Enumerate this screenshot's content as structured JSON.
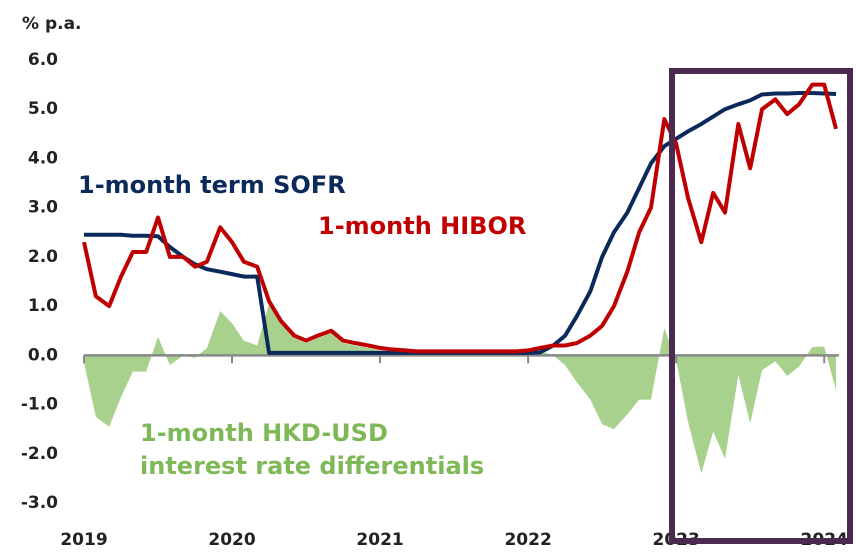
{
  "chart_data": {
    "type": "line",
    "y_label": "% p.a.",
    "x": [
      2019.0,
      2019.08,
      2019.17,
      2019.25,
      2019.33,
      2019.42,
      2019.5,
      2019.58,
      2019.67,
      2019.75,
      2019.83,
      2019.92,
      2020.0,
      2020.08,
      2020.17,
      2020.25,
      2020.33,
      2020.42,
      2020.5,
      2020.58,
      2020.67,
      2020.75,
      2020.83,
      2020.92,
      2021.0,
      2021.08,
      2021.17,
      2021.25,
      2021.33,
      2021.42,
      2021.5,
      2021.58,
      2021.67,
      2021.75,
      2021.83,
      2021.92,
      2022.0,
      2022.08,
      2022.17,
      2022.25,
      2022.33,
      2022.42,
      2022.5,
      2022.58,
      2022.67,
      2022.75,
      2022.83,
      2022.92,
      2023.0,
      2023.08,
      2023.17,
      2023.25,
      2023.33,
      2023.42,
      2023.5,
      2023.58,
      2023.67,
      2023.75,
      2023.83,
      2023.92,
      2024.0,
      2024.08
    ],
    "series": [
      {
        "name": "1-month term SOFR",
        "color": "#0b2a5c",
        "type": "line",
        "values": [
          2.45,
          2.45,
          2.45,
          2.45,
          2.43,
          2.43,
          2.42,
          2.2,
          2.0,
          1.85,
          1.75,
          1.7,
          1.65,
          1.6,
          1.6,
          0.05,
          0.05,
          0.05,
          0.05,
          0.05,
          0.05,
          0.05,
          0.05,
          0.05,
          0.05,
          0.05,
          0.05,
          0.05,
          0.05,
          0.05,
          0.05,
          0.05,
          0.05,
          0.05,
          0.05,
          0.05,
          0.05,
          0.06,
          0.2,
          0.4,
          0.8,
          1.3,
          2.0,
          2.5,
          2.9,
          3.4,
          3.9,
          4.25,
          4.4,
          4.55,
          4.7,
          4.85,
          5.0,
          5.1,
          5.18,
          5.3,
          5.32,
          5.32,
          5.33,
          5.33,
          5.32,
          5.31
        ]
      },
      {
        "name": "1-month HIBOR",
        "color": "#c00000",
        "type": "line",
        "values": [
          2.3,
          1.2,
          1.0,
          1.6,
          2.1,
          2.1,
          2.8,
          2.0,
          2.0,
          1.8,
          1.9,
          2.6,
          2.3,
          1.9,
          1.8,
          1.1,
          0.7,
          0.4,
          0.3,
          0.4,
          0.5,
          0.3,
          0.25,
          0.2,
          0.15,
          0.12,
          0.1,
          0.08,
          0.08,
          0.08,
          0.08,
          0.08,
          0.08,
          0.08,
          0.08,
          0.08,
          0.1,
          0.15,
          0.2,
          0.2,
          0.25,
          0.4,
          0.6,
          1.0,
          1.7,
          2.5,
          3.0,
          4.8,
          4.3,
          3.2,
          2.3,
          3.3,
          2.9,
          4.7,
          3.8,
          5.0,
          5.2,
          4.9,
          5.1,
          5.5,
          5.5,
          4.6
        ]
      },
      {
        "name": "1-month HKD-USD interest rate differentials",
        "color": "#a9d18e",
        "type": "area",
        "values": [
          -0.15,
          -1.25,
          -1.45,
          -0.85,
          -0.33,
          -0.33,
          0.38,
          -0.2,
          0,
          -0.05,
          0.15,
          0.9,
          0.65,
          0.3,
          0.2,
          1.05,
          0.65,
          0.35,
          0.25,
          0.35,
          0.45,
          0.25,
          0.2,
          0.15,
          0.1,
          0.07,
          0.05,
          0.03,
          0.03,
          0.03,
          0.03,
          0.03,
          0.03,
          0.03,
          0.03,
          0.03,
          0.05,
          0.09,
          0,
          -0.2,
          -0.55,
          -0.9,
          -1.4,
          -1.5,
          -1.2,
          -0.9,
          -0.9,
          0.55,
          -0.1,
          -1.35,
          -2.4,
          -1.55,
          -2.1,
          -0.4,
          -1.38,
          -0.3,
          -0.12,
          -0.42,
          -0.23,
          0.17,
          0.18,
          -0.71
        ]
      }
    ],
    "xlim": [
      2019,
      2024.1
    ],
    "xticks": [
      2019,
      2020,
      2021,
      2022,
      2023,
      2024
    ],
    "ylim": [
      -3,
      6
    ],
    "yticks": [
      {
        "value": -3,
        "label": "-3.0"
      },
      {
        "value": -2,
        "label": "-2.0"
      },
      {
        "value": -1,
        "label": "-1.0"
      },
      {
        "value": 0,
        "label": "0.0"
      },
      {
        "value": 1,
        "label": "1.0"
      },
      {
        "value": 2,
        "label": "2.0"
      },
      {
        "value": 3,
        "label": "3.0"
      },
      {
        "value": 4,
        "label": "4.0"
      },
      {
        "value": 5,
        "label": "5.0"
      },
      {
        "value": 6,
        "label": "6.0"
      }
    ],
    "highlight_color": "#4b2a4f"
  }
}
